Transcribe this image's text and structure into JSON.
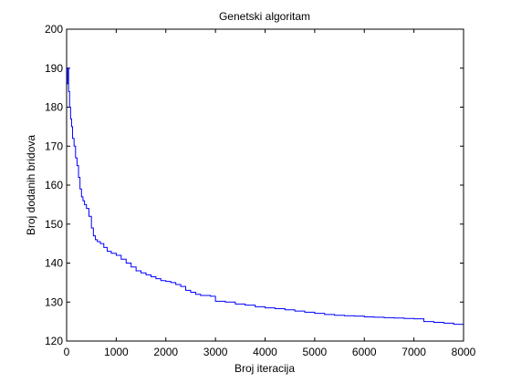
{
  "chart_data": {
    "type": "line",
    "title": "Genetski algoritam",
    "xlabel": "Broj iteracija",
    "ylabel": "Broj dodanih bridova",
    "xlim": [
      0,
      8000
    ],
    "ylim": [
      120,
      200
    ],
    "xticks": [
      0,
      1000,
      2000,
      3000,
      4000,
      5000,
      6000,
      7000,
      8000
    ],
    "yticks": [
      120,
      130,
      140,
      150,
      160,
      170,
      180,
      190,
      200
    ],
    "grid": false,
    "legend": "none",
    "series": [
      {
        "color": "#0000ff",
        "step": true,
        "x": [
          0,
          20,
          40,
          60,
          80,
          100,
          120,
          150,
          180,
          210,
          240,
          270,
          300,
          330,
          360,
          400,
          450,
          500,
          540,
          580,
          620,
          680,
          750,
          820,
          900,
          1000,
          1100,
          1200,
          1300,
          1400,
          1500,
          1600,
          1700,
          1800,
          1900,
          2000,
          2100,
          2200,
          2300,
          2400,
          2500,
          2600,
          2700,
          2900,
          3000,
          3200,
          3400,
          3600,
          3800,
          4000,
          4200,
          4400,
          4600,
          4800,
          5000,
          5200,
          5400,
          5600,
          5800,
          6000,
          6200,
          6400,
          6600,
          6800,
          7000,
          7200,
          7400,
          7600,
          7800,
          8000
        ],
        "y": [
          186,
          190,
          184,
          180,
          177,
          175,
          172,
          170,
          167,
          165,
          162,
          159,
          157,
          156,
          155,
          154,
          152,
          149,
          147,
          146,
          145.5,
          145,
          144,
          143,
          142.5,
          142,
          141,
          140,
          139,
          138,
          137.5,
          137,
          136.5,
          136,
          135.5,
          135.3,
          135,
          134.5,
          134,
          133,
          132.5,
          132,
          131.7,
          131.5,
          130.2,
          130,
          129.5,
          129.2,
          128.8,
          128.5,
          128.3,
          128,
          127.7,
          127.4,
          127.1,
          126.8,
          126.6,
          126.5,
          126.4,
          126.2,
          126.1,
          126,
          125.9,
          125.8,
          125.7,
          125,
          124.8,
          124.6,
          124.3,
          124.2
        ]
      }
    ]
  }
}
